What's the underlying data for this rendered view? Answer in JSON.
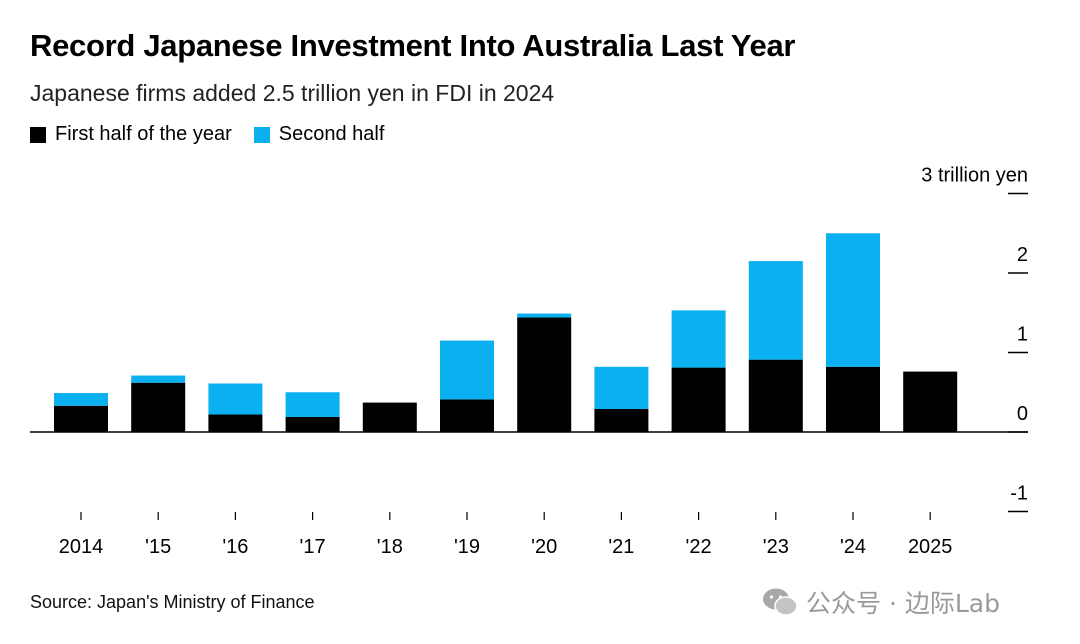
{
  "title": "Record Japanese Investment Into Australia Last Year",
  "subtitle": "Japanese firms added 2.5 trillion yen in FDI in 2024",
  "legend": [
    {
      "label": "First half of the year",
      "color": "#000000"
    },
    {
      "label": "Second half",
      "color": "#0ab0f0"
    }
  ],
  "source": "Source: Japan's Ministry of Finance",
  "watermark": "公众号 · 边际Lab",
  "chart_data": {
    "type": "bar",
    "stacked": true,
    "categories": [
      "2014",
      "'15",
      "'16",
      "'17",
      "'18",
      "'19",
      "'20",
      "'21",
      "'22",
      "'23",
      "'24",
      "2025"
    ],
    "series": [
      {
        "name": "First half of the year",
        "color": "#000000",
        "values": [
          0.33,
          0.62,
          0.22,
          0.19,
          0.37,
          0.41,
          1.44,
          0.29,
          0.81,
          0.91,
          0.82,
          0.76
        ]
      },
      {
        "name": "Second half",
        "color": "#0ab0f0",
        "values": [
          0.16,
          0.09,
          0.39,
          0.31,
          0.0,
          0.74,
          0.05,
          0.53,
          0.72,
          1.24,
          1.68,
          0.0
        ]
      }
    ],
    "ylim": [
      -1,
      3
    ],
    "yticks": [
      -1,
      0,
      1,
      2,
      3
    ],
    "ytick_labels": [
      "-1",
      "0",
      "1",
      "2",
      "3 trillion yen"
    ],
    "grid": false,
    "legend_position": "top-left"
  }
}
